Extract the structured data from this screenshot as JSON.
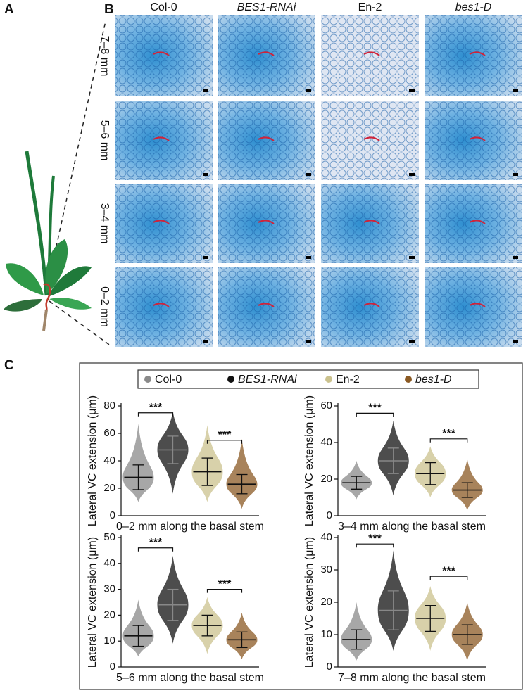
{
  "panel_labels": [
    "A",
    "B",
    "C"
  ],
  "panel_b": {
    "columns": [
      "Col-0",
      "BES1-RNAi",
      "En-2",
      "bes1-D"
    ],
    "rows": [
      "7–8 mm",
      "5–6 mm",
      "3–4 mm",
      "0–2 mm"
    ]
  },
  "legend": {
    "items": [
      {
        "name": "Col-0",
        "color": "#8a8a8a"
      },
      {
        "name": "BES1-RNAi",
        "color": "#111111"
      },
      {
        "name": "En-2",
        "color": "#cbc28e"
      },
      {
        "name": "bes1-D",
        "color": "#8b5a24"
      }
    ]
  },
  "chart_data": [
    {
      "type": "dot-plot",
      "ylabel": "Lateral VC extension (μm)",
      "xlabel": "0–2 mm along the basal stem",
      "ylim": [
        0,
        80
      ],
      "yticks": [
        0,
        20,
        40,
        60,
        80
      ],
      "mean": [
        28,
        48,
        32,
        23
      ],
      "sd": [
        9,
        10,
        10,
        7
      ],
      "min": [
        10,
        16,
        10,
        5
      ],
      "max": [
        67,
        76,
        66,
        56
      ],
      "annotations": [
        {
          "text": "***",
          "y": 75
        },
        {
          "text": "***",
          "y": 55
        }
      ]
    },
    {
      "type": "dot-plot",
      "ylabel": "Lateral VC extension (μm)",
      "xlabel": "3–4 mm along the basal stem",
      "ylim": [
        0,
        60
      ],
      "yticks": [
        0,
        20,
        40,
        60
      ],
      "mean": [
        18,
        30,
        23,
        14
      ],
      "sd": [
        3.5,
        7,
        6,
        4
      ],
      "min": [
        9,
        11,
        10,
        3
      ],
      "max": [
        30,
        52,
        38,
        31
      ],
      "annotations": [
        {
          "text": "***",
          "y": 56
        },
        {
          "text": "***",
          "y": 42
        }
      ]
    },
    {
      "type": "dot-plot",
      "ylabel": "Lateral VC extension (μm)",
      "xlabel": "5–6 mm along the basal stem",
      "ylim": [
        0,
        50
      ],
      "yticks": [
        0,
        10,
        20,
        30,
        40,
        50
      ],
      "mean": [
        12,
        24,
        16,
        10.5
      ],
      "sd": [
        4,
        6,
        4,
        3
      ],
      "min": [
        4,
        9,
        5,
        3
      ],
      "max": [
        26,
        43,
        27,
        21
      ],
      "annotations": [
        {
          "text": "***",
          "y": 46
        },
        {
          "text": "***",
          "y": 30
        }
      ]
    },
    {
      "type": "dot-plot",
      "ylabel": "Lateral VC extension (μm)",
      "xlabel": "7–8 mm along the basal stem",
      "ylim": [
        0,
        40
      ],
      "yticks": [
        0,
        10,
        20,
        30,
        40
      ],
      "mean": [
        8.5,
        17.5,
        15,
        10
      ],
      "sd": [
        3,
        6,
        4,
        3
      ],
      "min": [
        2,
        5,
        5,
        2
      ],
      "max": [
        20,
        36,
        25,
        20
      ],
      "annotations": [
        {
          "text": "***",
          "y": 38
        },
        {
          "text": "***",
          "y": 28
        }
      ]
    }
  ]
}
